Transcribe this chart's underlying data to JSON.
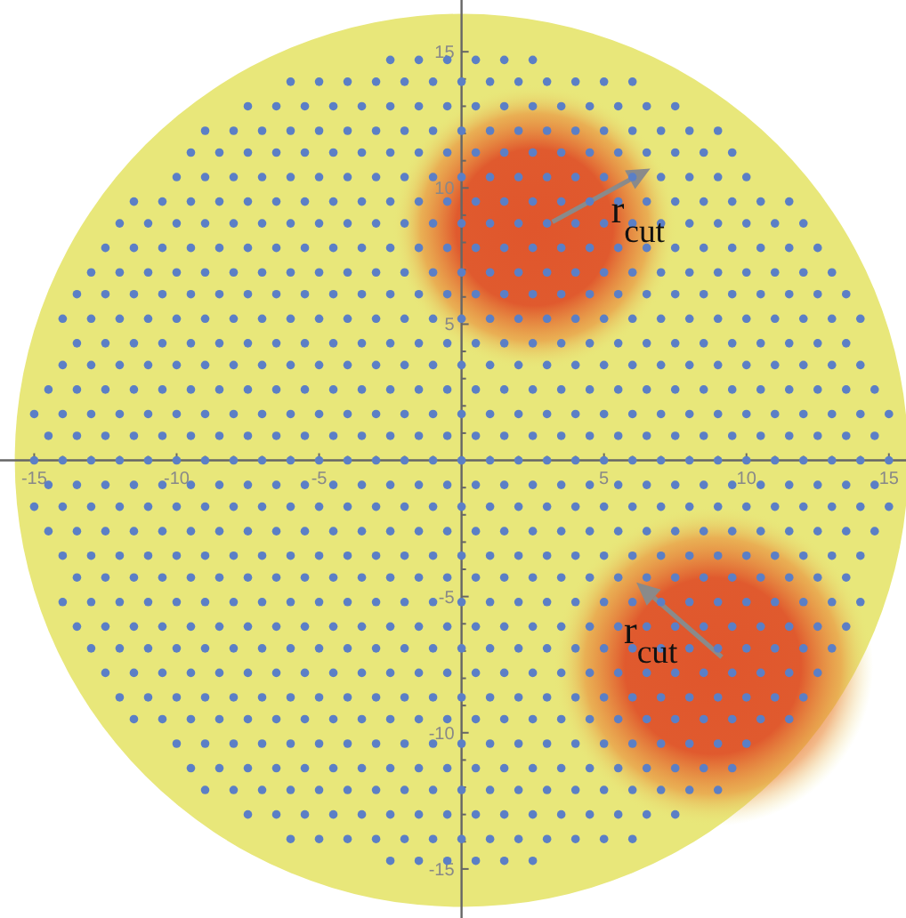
{
  "chart_data": {
    "type": "scatter",
    "marker": "circle",
    "xlim": [
      -16.2,
      15.6
    ],
    "ylim": [
      -16.8,
      16.9
    ],
    "xticks": [
      -15,
      {
        "value": -14,
        "label": null
      },
      {
        "value": -13,
        "label": null
      },
      {
        "value": -12,
        "label": null
      },
      {
        "value": -11,
        "label": null
      },
      -10,
      {
        "value": -9,
        "label": null
      },
      {
        "value": -8,
        "label": null
      },
      {
        "value": -7,
        "label": null
      },
      {
        "value": -6,
        "label": null
      },
      -5,
      {
        "value": -4,
        "label": null
      },
      {
        "value": -3,
        "label": null
      },
      {
        "value": -2,
        "label": null
      },
      {
        "value": -1,
        "label": null
      },
      {
        "value": 0,
        "label": null
      },
      {
        "value": 1,
        "label": null
      },
      {
        "value": 2,
        "label": null
      },
      {
        "value": 3,
        "label": null
      },
      {
        "value": 4,
        "label": null
      },
      5,
      {
        "value": 6,
        "label": null
      },
      {
        "value": 7,
        "label": null
      },
      {
        "value": 8,
        "label": null
      },
      {
        "value": 9,
        "label": null
      },
      10,
      {
        "value": 11,
        "label": null
      },
      {
        "value": 12,
        "label": null
      },
      {
        "value": 13,
        "label": null
      },
      {
        "value": 14,
        "label": null
      },
      15
    ],
    "yticks": [
      -15,
      {
        "value": -14,
        "label": null
      },
      {
        "value": -13,
        "label": null
      },
      {
        "value": -12,
        "label": null
      },
      {
        "value": -11,
        "label": null
      },
      -10,
      {
        "value": -9,
        "label": null
      },
      {
        "value": -8,
        "label": null
      },
      {
        "value": -7,
        "label": null
      },
      {
        "value": -6,
        "label": null
      },
      -5,
      {
        "value": -4,
        "label": null
      },
      {
        "value": -3,
        "label": null
      },
      {
        "value": -2,
        "label": null
      },
      {
        "value": -1,
        "label": null
      },
      {
        "value": 0,
        "label": null
      },
      {
        "value": 1,
        "label": null
      },
      {
        "value": 2,
        "label": null
      },
      {
        "value": 3,
        "label": null
      },
      {
        "value": 4,
        "label": null
      },
      5,
      {
        "value": 6,
        "label": null
      },
      {
        "value": 7,
        "label": null
      },
      {
        "value": 8,
        "label": null
      },
      {
        "value": 9,
        "label": null
      },
      10,
      {
        "value": 11,
        "label": null
      },
      {
        "value": 12,
        "label": null
      },
      {
        "value": 13,
        "label": null
      },
      {
        "value": 14,
        "label": null
      },
      15
    ],
    "annotations": [
      {
        "text": "r$_{cut}$",
        "x": 5.25,
        "y": 8.75
      },
      {
        "text": "r$_{cut}$",
        "x": 5.7,
        "y": -6.7
      }
    ],
    "series": [
      {
        "color": "#5b7fc6",
        "x": [
          -2.5,
          -1.5,
          -0.5,
          0.5,
          1.5,
          2.5
        ],
        "values": [
          14.7,
          14.7,
          14.7,
          14.7,
          14.7,
          14.7
        ]
      },
      {
        "color": "#5b7fc6",
        "x": [
          -6,
          -5,
          -4,
          -3,
          -2,
          -1,
          0,
          1,
          2,
          3,
          4,
          5,
          6
        ],
        "values": [
          13.9,
          13.9,
          13.9,
          13.9,
          13.9,
          13.9,
          13.9,
          13.9,
          13.9,
          13.9,
          13.9,
          13.9,
          13.9
        ]
      },
      {
        "color": "#5b7fc6",
        "x": [
          -7.5,
          -6.5,
          -5.5,
          -4.5,
          -3.5,
          -2.5,
          -1.5,
          -0.5,
          0.5,
          1.5,
          2.5,
          3.5,
          4.5,
          5.5,
          6.5,
          7.5
        ],
        "values": [
          13,
          13,
          13,
          13,
          13,
          13,
          13,
          13,
          13,
          13,
          13,
          13,
          13,
          13,
          13,
          13
        ]
      },
      {
        "color": "#5b7fc6",
        "x": [
          -9,
          -8,
          -7,
          -6,
          -5,
          -4,
          -3,
          -2,
          -1,
          0,
          1,
          2,
          3,
          4,
          5,
          6,
          7,
          8,
          9
        ],
        "values": [
          12.1,
          12.1,
          12.1,
          12.1,
          12.1,
          12.1,
          12.1,
          12.1,
          12.1,
          12.1,
          12.1,
          12.1,
          12.1,
          12.1,
          12.1,
          12.1,
          12.1,
          12.1,
          12.1
        ]
      },
      {
        "color": "#5b7fc6",
        "x": [
          -9.5,
          -8.5,
          -7.5,
          -6.5,
          -5.5,
          -4.5,
          -3.5,
          -2.5,
          -1.5,
          -0.5,
          0.5,
          1.5,
          2.5,
          3.5,
          4.5,
          5.5,
          6.5,
          7.5,
          8.5,
          9.5
        ],
        "values": [
          11.3,
          11.3,
          11.3,
          11.3,
          11.3,
          11.3,
          11.3,
          11.3,
          11.3,
          11.3,
          11.3,
          11.3,
          11.3,
          11.3,
          11.3,
          11.3,
          11.3,
          11.3,
          11.3,
          11.3
        ]
      },
      {
        "color": "#5b7fc6",
        "x": [
          -10,
          -9,
          -8,
          -7,
          -6,
          -5,
          -4,
          -3,
          -2,
          -1,
          0,
          1,
          2,
          3,
          4,
          5,
          6,
          7,
          8,
          9,
          10
        ],
        "values": [
          10.4,
          10.4,
          10.4,
          10.4,
          10.4,
          10.4,
          10.4,
          10.4,
          10.4,
          10.4,
          10.4,
          10.4,
          10.4,
          10.4,
          10.4,
          10.4,
          10.4,
          10.4,
          10.4,
          10.4,
          10.4
        ]
      },
      {
        "color": "#5b7fc6",
        "x": [
          -11.5,
          -10.5,
          -9.5,
          -8.5,
          -7.5,
          -6.5,
          -5.5,
          -4.5,
          -3.5,
          -2.5,
          -1.5,
          -0.5,
          0.5,
          1.5,
          2.5,
          3.5,
          4.5,
          5.5,
          6.5,
          7.5,
          8.5,
          9.5,
          10.5,
          11.5
        ],
        "values": [
          9.5,
          9.5,
          9.5,
          9.5,
          9.5,
          9.5,
          9.5,
          9.5,
          9.5,
          9.5,
          9.5,
          9.5,
          9.5,
          9.5,
          9.5,
          9.5,
          9.5,
          9.5,
          9.5,
          9.5,
          9.5,
          9.5,
          9.5,
          9.5
        ]
      },
      {
        "color": "#5b7fc6",
        "x": [
          -12,
          -11,
          -10,
          -9,
          -8,
          -7,
          -6,
          -5,
          -4,
          -3,
          -2,
          -1,
          0,
          1,
          2,
          3,
          4,
          5,
          6,
          7,
          8,
          9,
          10,
          11,
          12
        ],
        "values": [
          8.7,
          8.7,
          8.7,
          8.7,
          8.7,
          8.7,
          8.7,
          8.7,
          8.7,
          8.7,
          8.7,
          8.7,
          8.7,
          8.7,
          8.7,
          8.7,
          8.7,
          8.7,
          8.7,
          8.7,
          8.7,
          8.7,
          8.7,
          8.7,
          8.7
        ]
      },
      {
        "color": "#5b7fc6",
        "x": [
          -12.5,
          -11.5,
          -10.5,
          -9.5,
          -8.5,
          -7.5,
          -6.5,
          -5.5,
          -4.5,
          -3.5,
          -2.5,
          -1.5,
          -0.5,
          0.5,
          1.5,
          2.5,
          3.5,
          4.5,
          5.5,
          6.5,
          7.5,
          8.5,
          9.5,
          10.5,
          11.5,
          12.5
        ],
        "values": [
          7.8,
          7.8,
          7.8,
          7.8,
          7.8,
          7.8,
          7.8,
          7.8,
          7.8,
          7.8,
          7.8,
          7.8,
          7.8,
          7.8,
          7.8,
          7.8,
          7.8,
          7.8,
          7.8,
          7.8,
          7.8,
          7.8,
          7.8,
          7.8,
          7.8,
          7.8
        ]
      },
      {
        "color": "#5b7fc6",
        "x": [
          -13,
          -12,
          -11,
          -10,
          -9,
          -8,
          -7,
          -6,
          -5,
          -4,
          -3,
          -2,
          -1,
          0,
          1,
          2,
          3,
          4,
          5,
          6,
          7,
          8,
          9,
          10,
          11,
          12,
          13
        ],
        "values": [
          6.9,
          6.9,
          6.9,
          6.9,
          6.9,
          6.9,
          6.9,
          6.9,
          6.9,
          6.9,
          6.9,
          6.9,
          6.9,
          6.9,
          6.9,
          6.9,
          6.9,
          6.9,
          6.9,
          6.9,
          6.9,
          6.9,
          6.9,
          6.9,
          6.9,
          6.9,
          6.9
        ]
      },
      {
        "color": "#5b7fc6",
        "x": [
          -13.5,
          -12.5,
          -11.5,
          -10.5,
          -9.5,
          -8.5,
          -7.5,
          -6.5,
          -5.5,
          -4.5,
          -3.5,
          -2.5,
          -1.5,
          -0.5,
          0.5,
          1.5,
          2.5,
          3.5,
          4.5,
          5.5,
          6.5,
          7.5,
          8.5,
          9.5,
          10.5,
          11.5,
          12.5,
          13.5
        ],
        "values": [
          6.1,
          6.1,
          6.1,
          6.1,
          6.1,
          6.1,
          6.1,
          6.1,
          6.1,
          6.1,
          6.1,
          6.1,
          6.1,
          6.1,
          6.1,
          6.1,
          6.1,
          6.1,
          6.1,
          6.1,
          6.1,
          6.1,
          6.1,
          6.1,
          6.1,
          6.1,
          6.1,
          6.1
        ]
      },
      {
        "color": "#5b7fc6",
        "x": [
          -14,
          -13,
          -12,
          -11,
          -10,
          -9,
          -8,
          -7,
          -6,
          -5,
          -4,
          -3,
          -2,
          -1,
          0,
          1,
          2,
          3,
          4,
          5,
          6,
          7,
          8,
          9,
          10,
          11,
          12,
          13,
          14
        ],
        "values": [
          5.2,
          5.2,
          5.2,
          5.2,
          5.2,
          5.2,
          5.2,
          5.2,
          5.2,
          5.2,
          5.2,
          5.2,
          5.2,
          5.2,
          5.2,
          5.2,
          5.2,
          5.2,
          5.2,
          5.2,
          5.2,
          5.2,
          5.2,
          5.2,
          5.2,
          5.2,
          5.2,
          5.2,
          5.2
        ]
      },
      {
        "color": "#5b7fc6",
        "x": [
          -13.5,
          -12.5,
          -11.5,
          -10.5,
          -9.5,
          -8.5,
          -7.5,
          -6.5,
          -5.5,
          -4.5,
          -3.5,
          -2.5,
          -1.5,
          -0.5,
          0.5,
          1.5,
          2.5,
          3.5,
          4.5,
          5.5,
          6.5,
          7.5,
          8.5,
          9.5,
          10.5,
          11.5,
          12.5,
          13.5
        ],
        "values": [
          4.3,
          4.3,
          4.3,
          4.3,
          4.3,
          4.3,
          4.3,
          4.3,
          4.3,
          4.3,
          4.3,
          4.3,
          4.3,
          4.3,
          4.3,
          4.3,
          4.3,
          4.3,
          4.3,
          4.3,
          4.3,
          4.3,
          4.3,
          4.3,
          4.3,
          4.3,
          4.3,
          4.3
        ]
      },
      {
        "color": "#5b7fc6",
        "x": [
          -14,
          -13,
          -12,
          -11,
          -10,
          -9,
          -8,
          -7,
          -6,
          -5,
          -4,
          -3,
          -2,
          -1,
          0,
          1,
          2,
          3,
          4,
          5,
          6,
          7,
          8,
          9,
          10,
          11,
          12,
          13,
          14
        ],
        "values": [
          3.5,
          3.5,
          3.5,
          3.5,
          3.5,
          3.5,
          3.5,
          3.5,
          3.5,
          3.5,
          3.5,
          3.5,
          3.5,
          3.5,
          3.5,
          3.5,
          3.5,
          3.5,
          3.5,
          3.5,
          3.5,
          3.5,
          3.5,
          3.5,
          3.5,
          3.5,
          3.5,
          3.5,
          3.5
        ]
      },
      {
        "color": "#5b7fc6",
        "x": [
          -14.5,
          -13.5,
          -12.5,
          -11.5,
          -10.5,
          -9.5,
          -8.5,
          -7.5,
          -6.5,
          -5.5,
          -4.5,
          -3.5,
          -2.5,
          -1.5,
          -0.5,
          0.5,
          1.5,
          2.5,
          3.5,
          4.5,
          5.5,
          6.5,
          7.5,
          8.5,
          9.5,
          10.5,
          11.5,
          12.5,
          13.5,
          14.5
        ],
        "values": [
          2.6,
          2.6,
          2.6,
          2.6,
          2.6,
          2.6,
          2.6,
          2.6,
          2.6,
          2.6,
          2.6,
          2.6,
          2.6,
          2.6,
          2.6,
          2.6,
          2.6,
          2.6,
          2.6,
          2.6,
          2.6,
          2.6,
          2.6,
          2.6,
          2.6,
          2.6,
          2.6,
          2.6,
          2.6,
          2.6
        ]
      },
      {
        "color": "#5b7fc6",
        "x": [
          -15,
          -14,
          -13,
          -12,
          -11,
          -10,
          -9,
          -8,
          -7,
          -6,
          -5,
          -4,
          -3,
          -2,
          -1,
          0,
          1,
          2,
          3,
          4,
          5,
          6,
          7,
          8,
          9,
          10,
          11,
          12,
          13,
          14,
          15
        ],
        "values": [
          1.7,
          1.7,
          1.7,
          1.7,
          1.7,
          1.7,
          1.7,
          1.7,
          1.7,
          1.7,
          1.7,
          1.7,
          1.7,
          1.7,
          1.7,
          1.7,
          1.7,
          1.7,
          1.7,
          1.7,
          1.7,
          1.7,
          1.7,
          1.7,
          1.7,
          1.7,
          1.7,
          1.7,
          1.7,
          1.7,
          1.7
        ]
      },
      {
        "color": "#5b7fc6",
        "x": [
          -14.5,
          -13.5,
          -12.5,
          -11.5,
          -10.5,
          -9.5,
          -8.5,
          -7.5,
          -6.5,
          -5.5,
          -4.5,
          -3.5,
          -2.5,
          -1.5,
          -0.5,
          0.5,
          1.5,
          2.5,
          3.5,
          4.5,
          5.5,
          6.5,
          7.5,
          8.5,
          9.5,
          10.5,
          11.5,
          12.5,
          13.5,
          14.5
        ],
        "values": [
          0.9,
          0.9,
          0.9,
          0.9,
          0.9,
          0.9,
          0.9,
          0.9,
          0.9,
          0.9,
          0.9,
          0.9,
          0.9,
          0.9,
          0.9,
          0.9,
          0.9,
          0.9,
          0.9,
          0.9,
          0.9,
          0.9,
          0.9,
          0.9,
          0.9,
          0.9,
          0.9,
          0.9,
          0.9,
          0.9
        ]
      },
      {
        "color": "#5b7fc6",
        "x": [
          -15,
          -14,
          -13,
          -12,
          -11,
          -10,
          -9,
          -8,
          -7,
          -6,
          -5,
          -4,
          -3,
          -2,
          -1,
          0,
          1,
          2,
          3,
          4,
          5,
          6,
          7,
          8,
          9,
          10,
          11,
          12,
          13,
          14,
          15
        ],
        "values": [
          0,
          0,
          0,
          0,
          0,
          0,
          0,
          0,
          0,
          0,
          0,
          0,
          0,
          0,
          0,
          0,
          0,
          0,
          0,
          0,
          0,
          0,
          0,
          0,
          0,
          0,
          0,
          0,
          0,
          0,
          0
        ]
      },
      {
        "color": "#5b7fc6",
        "x": [
          -14.5,
          -13.5,
          -12.5,
          -11.5,
          -10.5,
          -9.5,
          -8.5,
          -7.5,
          -6.5,
          -5.5,
          -4.5,
          -3.5,
          -2.5,
          -1.5,
          -0.5,
          0.5,
          1.5,
          2.5,
          3.5,
          4.5,
          5.5,
          6.5,
          7.5,
          8.5,
          9.5,
          10.5,
          11.5,
          12.5,
          13.5,
          14.5
        ],
        "values": [
          -0.9,
          -0.9,
          -0.9,
          -0.9,
          -0.9,
          -0.9,
          -0.9,
          -0.9,
          -0.9,
          -0.9,
          -0.9,
          -0.9,
          -0.9,
          -0.9,
          -0.9,
          -0.9,
          -0.9,
          -0.9,
          -0.9,
          -0.9,
          -0.9,
          -0.9,
          -0.9,
          -0.9,
          -0.9,
          -0.9,
          -0.9,
          -0.9,
          -0.9,
          -0.9
        ]
      },
      {
        "color": "#5b7fc6",
        "x": [
          -15,
          -14,
          -13,
          -12,
          -11,
          -10,
          -9,
          -8,
          -7,
          -6,
          -5,
          -4,
          -3,
          -2,
          -1,
          0,
          1,
          2,
          3,
          4,
          5,
          6,
          7,
          8,
          9,
          10,
          11,
          12,
          13,
          14,
          15
        ],
        "values": [
          -1.7,
          -1.7,
          -1.7,
          -1.7,
          -1.7,
          -1.7,
          -1.7,
          -1.7,
          -1.7,
          -1.7,
          -1.7,
          -1.7,
          -1.7,
          -1.7,
          -1.7,
          -1.7,
          -1.7,
          -1.7,
          -1.7,
          -1.7,
          -1.7,
          -1.7,
          -1.7,
          -1.7,
          -1.7,
          -1.7,
          -1.7,
          -1.7,
          -1.7,
          -1.7,
          -1.7
        ]
      },
      {
        "color": "#5b7fc6",
        "x": [
          -14.5,
          -13.5,
          -12.5,
          -11.5,
          -10.5,
          -9.5,
          -8.5,
          -7.5,
          -6.5,
          -5.5,
          -4.5,
          -3.5,
          -2.5,
          -1.5,
          -0.5,
          0.5,
          1.5,
          2.5,
          3.5,
          4.5,
          5.5,
          6.5,
          7.5,
          8.5,
          9.5,
          10.5,
          11.5,
          12.5,
          13.5,
          14.5
        ],
        "values": [
          -2.6,
          -2.6,
          -2.6,
          -2.6,
          -2.6,
          -2.6,
          -2.6,
          -2.6,
          -2.6,
          -2.6,
          -2.6,
          -2.6,
          -2.6,
          -2.6,
          -2.6,
          -2.6,
          -2.6,
          -2.6,
          -2.6,
          -2.6,
          -2.6,
          -2.6,
          -2.6,
          -2.6,
          -2.6,
          -2.6,
          -2.6,
          -2.6,
          -2.6,
          -2.6
        ]
      },
      {
        "color": "#5b7fc6",
        "x": [
          -14,
          -13,
          -12,
          -11,
          -10,
          -9,
          -8,
          -7,
          -6,
          -5,
          -4,
          -3,
          -2,
          -1,
          0,
          1,
          2,
          3,
          4,
          5,
          6,
          7,
          8,
          9,
          10,
          11,
          12,
          13,
          14
        ],
        "values": [
          -3.5,
          -3.5,
          -3.5,
          -3.5,
          -3.5,
          -3.5,
          -3.5,
          -3.5,
          -3.5,
          -3.5,
          -3.5,
          -3.5,
          -3.5,
          -3.5,
          -3.5,
          -3.5,
          -3.5,
          -3.5,
          -3.5,
          -3.5,
          -3.5,
          -3.5,
          -3.5,
          -3.5,
          -3.5,
          -3.5,
          -3.5,
          -3.5,
          -3.5
        ]
      },
      {
        "color": "#5b7fc6",
        "x": [
          -13.5,
          -12.5,
          -11.5,
          -10.5,
          -9.5,
          -8.5,
          -7.5,
          -6.5,
          -5.5,
          -4.5,
          -3.5,
          -2.5,
          -1.5,
          -0.5,
          0.5,
          1.5,
          2.5,
          3.5,
          4.5,
          5.5,
          6.5,
          7.5,
          8.5,
          9.5,
          10.5,
          11.5,
          12.5,
          13.5
        ],
        "values": [
          -4.3,
          -4.3,
          -4.3,
          -4.3,
          -4.3,
          -4.3,
          -4.3,
          -4.3,
          -4.3,
          -4.3,
          -4.3,
          -4.3,
          -4.3,
          -4.3,
          -4.3,
          -4.3,
          -4.3,
          -4.3,
          -4.3,
          -4.3,
          -4.3,
          -4.3,
          -4.3,
          -4.3,
          -4.3,
          -4.3,
          -4.3,
          -4.3
        ]
      },
      {
        "color": "#5b7fc6",
        "x": [
          -14,
          -13,
          -12,
          -11,
          -10,
          -9,
          -8,
          -7,
          -6,
          -5,
          -4,
          -3,
          -2,
          -1,
          0,
          1,
          2,
          3,
          4,
          5,
          6,
          7,
          8,
          9,
          10,
          11,
          12,
          13,
          14
        ],
        "values": [
          -5.2,
          -5.2,
          -5.2,
          -5.2,
          -5.2,
          -5.2,
          -5.2,
          -5.2,
          -5.2,
          -5.2,
          -5.2,
          -5.2,
          -5.2,
          -5.2,
          -5.2,
          -5.2,
          -5.2,
          -5.2,
          -5.2,
          -5.2,
          -5.2,
          -5.2,
          -5.2,
          -5.2,
          -5.2,
          -5.2,
          -5.2,
          -5.2,
          -5.2
        ]
      },
      {
        "color": "#5b7fc6",
        "x": [
          -13.5,
          -12.5,
          -11.5,
          -10.5,
          -9.5,
          -8.5,
          -7.5,
          -6.5,
          -5.5,
          -4.5,
          -3.5,
          -2.5,
          -1.5,
          -0.5,
          0.5,
          1.5,
          2.5,
          3.5,
          4.5,
          5.5,
          6.5,
          7.5,
          8.5,
          9.5,
          10.5,
          11.5,
          12.5,
          13.5
        ],
        "values": [
          -6.1,
          -6.1,
          -6.1,
          -6.1,
          -6.1,
          -6.1,
          -6.1,
          -6.1,
          -6.1,
          -6.1,
          -6.1,
          -6.1,
          -6.1,
          -6.1,
          -6.1,
          -6.1,
          -6.1,
          -6.1,
          -6.1,
          -6.1,
          -6.1,
          -6.1,
          -6.1,
          -6.1,
          -6.1,
          -6.1,
          -6.1,
          -6.1
        ]
      },
      {
        "color": "#5b7fc6",
        "x": [
          -13,
          -12,
          -11,
          -10,
          -9,
          -8,
          -7,
          -6,
          -5,
          -4,
          -3,
          -2,
          -1,
          0,
          1,
          2,
          3,
          4,
          5,
          6,
          7,
          8,
          9,
          10,
          11,
          12,
          13
        ],
        "values": [
          -6.9,
          -6.9,
          -6.9,
          -6.9,
          -6.9,
          -6.9,
          -6.9,
          -6.9,
          -6.9,
          -6.9,
          -6.9,
          -6.9,
          -6.9,
          -6.9,
          -6.9,
          -6.9,
          -6.9,
          -6.9,
          -6.9,
          -6.9,
          -6.9,
          -6.9,
          -6.9,
          -6.9,
          -6.9,
          -6.9,
          -6.9
        ]
      },
      {
        "color": "#5b7fc6",
        "x": [
          -12.5,
          -11.5,
          -10.5,
          -9.5,
          -8.5,
          -7.5,
          -6.5,
          -5.5,
          -4.5,
          -3.5,
          -2.5,
          -1.5,
          -0.5,
          0.5,
          1.5,
          2.5,
          3.5,
          4.5,
          5.5,
          6.5,
          7.5,
          8.5,
          9.5,
          10.5,
          11.5,
          12.5
        ],
        "values": [
          -7.8,
          -7.8,
          -7.8,
          -7.8,
          -7.8,
          -7.8,
          -7.8,
          -7.8,
          -7.8,
          -7.8,
          -7.8,
          -7.8,
          -7.8,
          -7.8,
          -7.8,
          -7.8,
          -7.8,
          -7.8,
          -7.8,
          -7.8,
          -7.8,
          -7.8,
          -7.8,
          -7.8,
          -7.8,
          -7.8
        ]
      },
      {
        "color": "#5b7fc6",
        "x": [
          -12,
          -11,
          -10,
          -9,
          -8,
          -7,
          -6,
          -5,
          -4,
          -3,
          -2,
          -1,
          0,
          1,
          2,
          3,
          4,
          5,
          6,
          7,
          8,
          9,
          10,
          11,
          12
        ],
        "values": [
          -8.7,
          -8.7,
          -8.7,
          -8.7,
          -8.7,
          -8.7,
          -8.7,
          -8.7,
          -8.7,
          -8.7,
          -8.7,
          -8.7,
          -8.7,
          -8.7,
          -8.7,
          -8.7,
          -8.7,
          -8.7,
          -8.7,
          -8.7,
          -8.7,
          -8.7,
          -8.7,
          -8.7,
          -8.7
        ]
      },
      {
        "color": "#5b7fc6",
        "x": [
          -11.5,
          -10.5,
          -9.5,
          -8.5,
          -7.5,
          -6.5,
          -5.5,
          -4.5,
          -3.5,
          -2.5,
          -1.5,
          -0.5,
          0.5,
          1.5,
          2.5,
          3.5,
          4.5,
          5.5,
          6.5,
          7.5,
          8.5,
          9.5,
          10.5,
          11.5
        ],
        "values": [
          -9.5,
          -9.5,
          -9.5,
          -9.5,
          -9.5,
          -9.5,
          -9.5,
          -9.5,
          -9.5,
          -9.5,
          -9.5,
          -9.5,
          -9.5,
          -9.5,
          -9.5,
          -9.5,
          -9.5,
          -9.5,
          -9.5,
          -9.5,
          -9.5,
          -9.5,
          -9.5,
          -9.5
        ]
      },
      {
        "color": "#5b7fc6",
        "x": [
          -10,
          -9,
          -8,
          -7,
          -6,
          -5,
          -4,
          -3,
          -2,
          -1,
          0,
          1,
          2,
          3,
          4,
          5,
          6,
          7,
          8,
          9,
          10
        ],
        "values": [
          -10.4,
          -10.4,
          -10.4,
          -10.4,
          -10.4,
          -10.4,
          -10.4,
          -10.4,
          -10.4,
          -10.4,
          -10.4,
          -10.4,
          -10.4,
          -10.4,
          -10.4,
          -10.4,
          -10.4,
          -10.4,
          -10.4,
          -10.4,
          -10.4
        ]
      },
      {
        "color": "#5b7fc6",
        "x": [
          -9.5,
          -8.5,
          -7.5,
          -6.5,
          -5.5,
          -4.5,
          -3.5,
          -2.5,
          -1.5,
          -0.5,
          0.5,
          1.5,
          2.5,
          3.5,
          4.5,
          5.5,
          6.5,
          7.5,
          8.5,
          9.5
        ],
        "values": [
          -11.3,
          -11.3,
          -11.3,
          -11.3,
          -11.3,
          -11.3,
          -11.3,
          -11.3,
          -11.3,
          -11.3,
          -11.3,
          -11.3,
          -11.3,
          -11.3,
          -11.3,
          -11.3,
          -11.3,
          -11.3,
          -11.3,
          -11.3
        ]
      },
      {
        "color": "#5b7fc6",
        "x": [
          -9,
          -8,
          -7,
          -6,
          -5,
          -4,
          -3,
          -2,
          -1,
          0,
          1,
          2,
          3,
          4,
          5,
          6,
          7,
          8,
          9
        ],
        "values": [
          -12.1,
          -12.1,
          -12.1,
          -12.1,
          -12.1,
          -12.1,
          -12.1,
          -12.1,
          -12.1,
          -12.1,
          -12.1,
          -12.1,
          -12.1,
          -12.1,
          -12.1,
          -12.1,
          -12.1,
          -12.1,
          -12.1
        ]
      },
      {
        "color": "#5b7fc6",
        "x": [
          -7.5,
          -6.5,
          -5.5,
          -4.5,
          -3.5,
          -2.5,
          -1.5,
          -0.5,
          0.5,
          1.5,
          2.5,
          3.5,
          4.5,
          5.5,
          6.5,
          7.5
        ],
        "values": [
          -13,
          -13,
          -13,
          -13,
          -13,
          -13,
          -13,
          -13,
          -13,
          -13,
          -13,
          -13,
          -13,
          -13,
          -13,
          -13
        ]
      },
      {
        "color": "#5b7fc6",
        "x": [
          -6,
          -5,
          -4,
          -3,
          -2,
          -1,
          0,
          1,
          2,
          3,
          4,
          5,
          6
        ],
        "values": [
          -13.9,
          -13.9,
          -13.9,
          -13.9,
          -13.9,
          -13.9,
          -13.9,
          -13.9,
          -13.9,
          -13.9,
          -13.9,
          -13.9,
          -13.9
        ]
      },
      {
        "color": "#5b7fc6",
        "x": [
          -2.5,
          -1.5,
          -0.5,
          0.5,
          1.5,
          2.5
        ],
        "values": [
          -14.7,
          -14.7,
          -14.7,
          -14.7,
          -14.7,
          -14.7
        ]
      }
    ]
  }
}
